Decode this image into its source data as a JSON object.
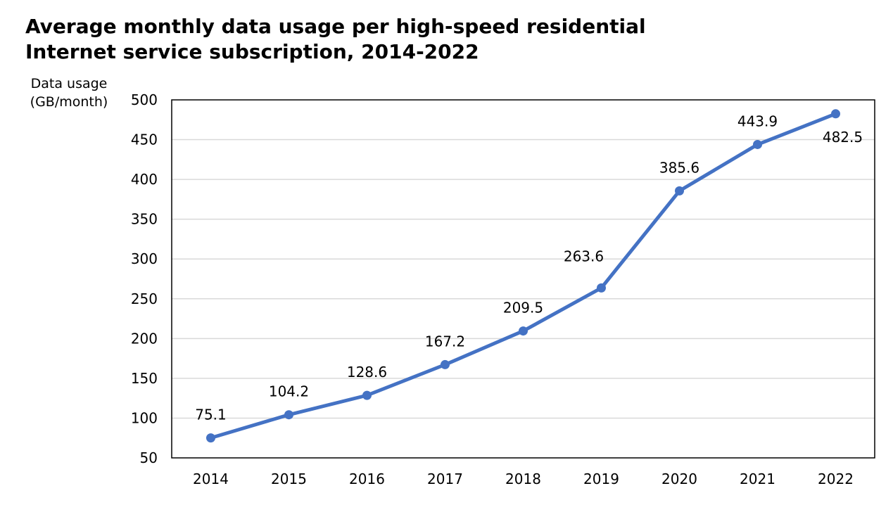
{
  "chart_data": {
    "type": "line",
    "title": [
      "Average monthly data usage per high-speed residential",
      "Internet service subscription, 2014-2022"
    ],
    "ylabel": [
      "Data usage",
      "(GB/month)"
    ],
    "xlabel": "",
    "categories": [
      "2014",
      "2015",
      "2016",
      "2017",
      "2018",
      "2019",
      "2020",
      "2021",
      "2022"
    ],
    "series": [
      {
        "name": "Data usage",
        "values": [
          75.1,
          104.2,
          128.6,
          167.2,
          209.5,
          263.6,
          385.6,
          443.9,
          482.5
        ],
        "labels": [
          "75.1",
          "104.2",
          "128.6",
          "167.2",
          "209.5",
          "263.6",
          "385.6",
          "443.9",
          "482.5"
        ],
        "label_positions": [
          "above",
          "above",
          "above",
          "above",
          "above",
          "above-left",
          "above",
          "above",
          "below"
        ],
        "color": "#4472C4"
      }
    ],
    "ylim": [
      50,
      500
    ],
    "yticks": [
      "50",
      "100",
      "150",
      "200",
      "250",
      "300",
      "350",
      "400",
      "450",
      "500"
    ],
    "grid": true,
    "gridline_color": "#D9D9D9",
    "legend": "none"
  }
}
